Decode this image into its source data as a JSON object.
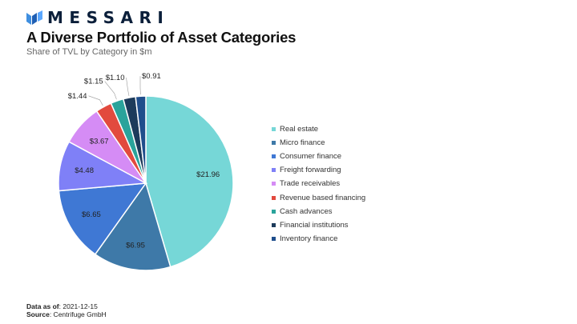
{
  "brand": {
    "name": "MESSARI",
    "logo_icon": "messari-m-logo-icon",
    "color": "#0b1f3a"
  },
  "header": {
    "title": "A Diverse Portfolio of Asset Categories",
    "subtitle": "Share of TVL by Category in $m"
  },
  "chart_data": {
    "type": "pie",
    "start_angle": "12 o'clock",
    "direction": "clockwise",
    "legend_position": "right",
    "slices": [
      {
        "name": "Real estate",
        "value": 21.96,
        "label": "$21.96",
        "color": "#76d7d7"
      },
      {
        "name": "Micro finance",
        "value": 6.95,
        "label": "$6.95",
        "color": "#3e79a8"
      },
      {
        "name": "Consumer finance",
        "value": 6.65,
        "label": "$6.65",
        "color": "#3f78d4"
      },
      {
        "name": "Freight forwarding",
        "value": 4.48,
        "label": "$4.48",
        "color": "#7f80f7"
      },
      {
        "name": "Trade receivables",
        "value": 3.67,
        "label": "$3.67",
        "color": "#d58cf5"
      },
      {
        "name": "Revenue based financing",
        "value": 1.44,
        "label": "$1.44",
        "color": "#e24a3e"
      },
      {
        "name": "Cash advances",
        "value": 1.15,
        "label": "$1.15",
        "color": "#2aa39b"
      },
      {
        "name": "Financial institutions",
        "value": 1.1,
        "label": "$1.10",
        "color": "#1d3b5b"
      },
      {
        "name": "Inventory finance",
        "value": 0.91,
        "label": "$0.91",
        "color": "#1f4e8c"
      }
    ]
  },
  "footer": {
    "data_as_of_label": "Data as of",
    "data_as_of_value": ": 2021-12-15",
    "source_label": "Source",
    "source_value": ": Centrifuge GmbH"
  }
}
